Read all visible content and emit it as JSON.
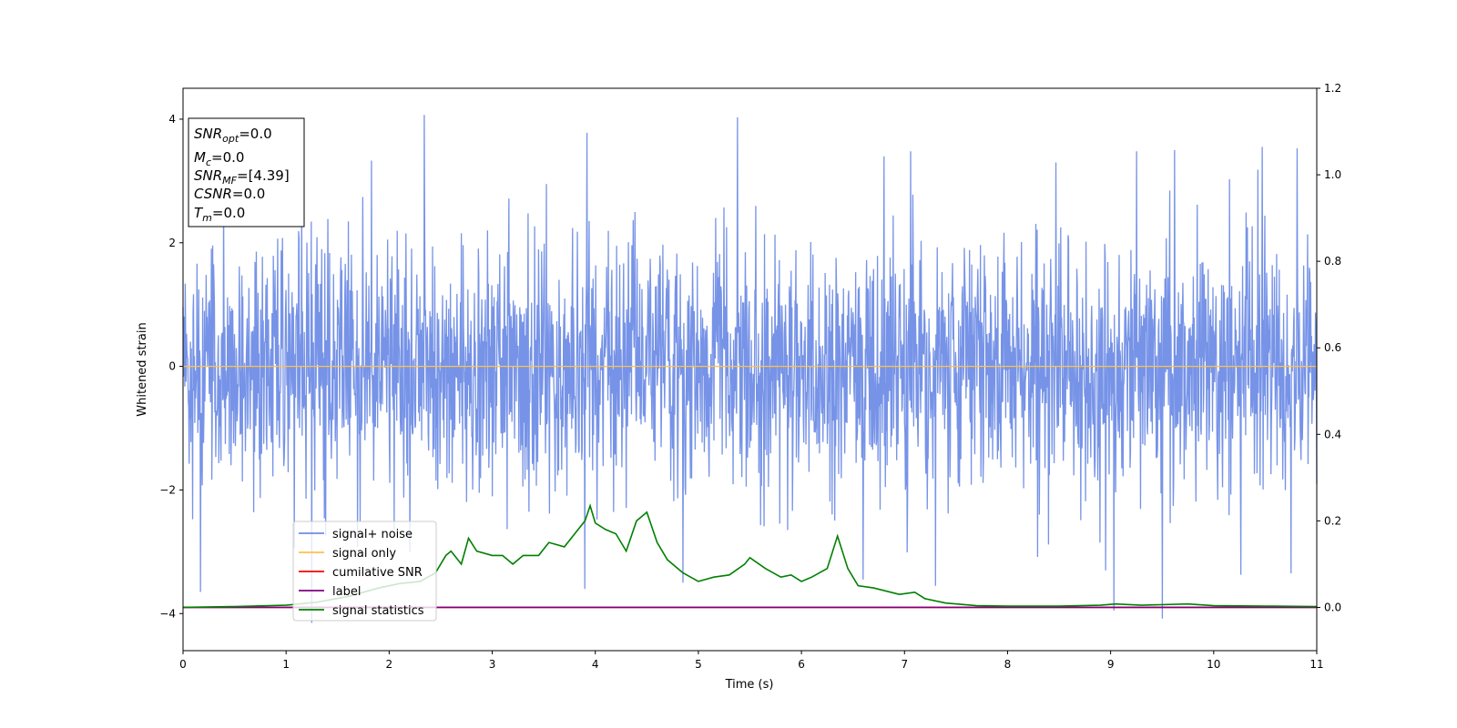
{
  "chart_data": {
    "type": "line",
    "xlabel": "Time (s)",
    "ylabel": "Whitened strain",
    "xlim": [
      0,
      11
    ],
    "ylim": [
      -4.6,
      4.5
    ],
    "y2lim": [
      -0.1,
      1.2
    ],
    "x_ticks": [
      0,
      1,
      2,
      3,
      4,
      5,
      6,
      7,
      8,
      9,
      10,
      11
    ],
    "y_ticks": [
      -4,
      -2,
      0,
      2,
      4
    ],
    "y2_ticks": [
      0.0,
      0.2,
      0.4,
      0.6,
      0.8,
      1.0,
      1.2
    ],
    "grid": false,
    "legend_position": "lower-left",
    "info_box": {
      "snr_opt": "=0.0",
      "mc": "=0.0",
      "snr_mf": "=[4.39]",
      "csnr": "=0.0",
      "tm": "=0.0"
    },
    "series": [
      {
        "name": "signal+ noise",
        "color": "#6f8de6",
        "axis": "left",
        "kind": "noise",
        "std": 1.0,
        "n_points": 2600,
        "max": 4.07,
        "min": -4.15,
        "peaks_pos": [
          [
            2.34,
            4.07
          ],
          [
            5.38,
            4.03
          ],
          [
            3.92,
            3.78
          ],
          [
            10.47,
            3.55
          ],
          [
            10.81,
            3.53
          ],
          [
            1.83,
            3.33
          ],
          [
            9.25,
            3.48
          ],
          [
            9.62,
            3.5
          ],
          [
            7.06,
            3.48
          ],
          [
            6.8,
            3.4
          ]
        ],
        "peaks_neg": [
          [
            1.25,
            -4.15
          ],
          [
            9.5,
            -4.08
          ],
          [
            9.03,
            -3.95
          ],
          [
            0.17,
            -3.65
          ],
          [
            3.9,
            -3.6
          ],
          [
            7.3,
            -3.55
          ],
          [
            4.85,
            -3.5
          ],
          [
            6.6,
            -3.45
          ],
          [
            8.95,
            -3.3
          ],
          [
            10.75,
            -3.35
          ]
        ]
      },
      {
        "name": "signal only",
        "color": "#ffc04d",
        "axis": "left",
        "x": [
          0,
          11
        ],
        "y": [
          0,
          0
        ]
      },
      {
        "name": "cumilative SNR",
        "color": "#ff0000",
        "axis": "right",
        "x": [
          0,
          11
        ],
        "y": [
          0,
          0
        ]
      },
      {
        "name": "label",
        "color": "#800080",
        "axis": "right",
        "x": [
          0,
          11
        ],
        "y": [
          0,
          0
        ]
      },
      {
        "name": "signal statistics",
        "color": "#008000",
        "axis": "right",
        "x": [
          0.0,
          0.5,
          1.0,
          1.3,
          1.6,
          1.9,
          2.1,
          2.3,
          2.45,
          2.55,
          2.6,
          2.7,
          2.77,
          2.85,
          3.0,
          3.1,
          3.2,
          3.3,
          3.45,
          3.55,
          3.7,
          3.8,
          3.9,
          3.95,
          4.0,
          4.1,
          4.2,
          4.3,
          4.4,
          4.5,
          4.6,
          4.7,
          4.85,
          5.0,
          5.15,
          5.3,
          5.45,
          5.5,
          5.65,
          5.8,
          5.9,
          6.0,
          6.1,
          6.25,
          6.35,
          6.45,
          6.55,
          6.7,
          6.95,
          7.1,
          7.2,
          7.4,
          7.7,
          8.0,
          8.5,
          8.9,
          9.05,
          9.3,
          9.75,
          10.0,
          10.5,
          11.0
        ],
        "y": [
          0.0,
          0.002,
          0.005,
          0.012,
          0.025,
          0.045,
          0.055,
          0.06,
          0.08,
          0.12,
          0.13,
          0.1,
          0.16,
          0.13,
          0.12,
          0.12,
          0.1,
          0.12,
          0.12,
          0.15,
          0.14,
          0.17,
          0.2,
          0.235,
          0.195,
          0.18,
          0.17,
          0.13,
          0.2,
          0.22,
          0.15,
          0.11,
          0.08,
          0.06,
          0.07,
          0.075,
          0.1,
          0.115,
          0.09,
          0.07,
          0.075,
          0.06,
          0.07,
          0.09,
          0.165,
          0.09,
          0.05,
          0.045,
          0.03,
          0.035,
          0.02,
          0.01,
          0.004,
          0.003,
          0.003,
          0.005,
          0.008,
          0.005,
          0.008,
          0.004,
          0.003,
          0.002
        ]
      }
    ]
  }
}
